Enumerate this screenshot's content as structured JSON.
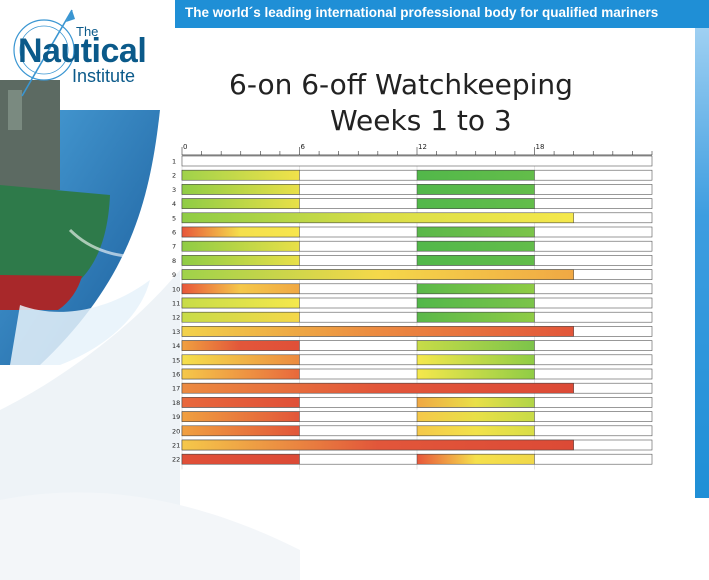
{
  "banner": {
    "text": "The world´s leading international professional body for qualified mariners"
  },
  "logo": {
    "the": "The",
    "name": "Nautical",
    "institute": "Institute"
  },
  "colors": {
    "banner": "#1f8fd6",
    "logo": "#0b5a8a"
  },
  "chart_data": {
    "type": "bar",
    "title_line1": "6-on 6-off Watchkeeping",
    "title_line2": "Weeks 1 to 3",
    "xlim": [
      0,
      24
    ],
    "x_ticks": [
      0,
      6,
      12,
      18
    ],
    "x_tick_labels": [
      "0",
      "6",
      "12",
      "18"
    ],
    "rows": [
      {
        "label": "1",
        "segments": []
      },
      {
        "label": "2",
        "segments": [
          {
            "start": 0,
            "end": 6,
            "c": [
              "#9fd24a",
              "#f2e24a"
            ]
          },
          {
            "start": 12,
            "end": 18,
            "c": [
              "#52b84a",
              "#63bd4a"
            ]
          }
        ]
      },
      {
        "label": "3",
        "segments": [
          {
            "start": 0,
            "end": 6,
            "c": [
              "#8fcc45",
              "#e9e048"
            ]
          },
          {
            "start": 12,
            "end": 18,
            "c": [
              "#52b84a",
              "#63bd4a"
            ]
          }
        ]
      },
      {
        "label": "4",
        "segments": [
          {
            "start": 0,
            "end": 6,
            "c": [
              "#8fcc45",
              "#e9e048"
            ]
          },
          {
            "start": 12,
            "end": 18,
            "c": [
              "#52b84a",
              "#63bd4a"
            ]
          }
        ]
      },
      {
        "label": "5",
        "segments": [
          {
            "start": 0,
            "end": 20,
            "c": [
              "#8fcc45",
              "#d9de48",
              "#f5e84c"
            ]
          }
        ]
      },
      {
        "label": "6",
        "segments": [
          {
            "start": 0,
            "end": 6,
            "c": [
              "#e8563a",
              "#f5e04c",
              "#f7e64d"
            ]
          },
          {
            "start": 12,
            "end": 18,
            "c": [
              "#5ab84a",
              "#7cc44a"
            ]
          }
        ]
      },
      {
        "label": "7",
        "segments": [
          {
            "start": 0,
            "end": 6,
            "c": [
              "#8fcc45",
              "#e9e048"
            ]
          },
          {
            "start": 12,
            "end": 18,
            "c": [
              "#52b84a",
              "#63bd4a"
            ]
          }
        ]
      },
      {
        "label": "8",
        "segments": [
          {
            "start": 0,
            "end": 6,
            "c": [
              "#8fcc45",
              "#e9e048"
            ]
          },
          {
            "start": 12,
            "end": 18,
            "c": [
              "#52b84a",
              "#63bd4a"
            ]
          }
        ]
      },
      {
        "label": "9",
        "segments": [
          {
            "start": 0,
            "end": 20,
            "c": [
              "#9fd24a",
              "#f5d84a",
              "#f0a844"
            ]
          }
        ]
      },
      {
        "label": "10",
        "segments": [
          {
            "start": 0,
            "end": 6,
            "c": [
              "#e8563a",
              "#f5c84a",
              "#f0a844"
            ]
          },
          {
            "start": 12,
            "end": 18,
            "c": [
              "#5ab84a",
              "#8fcc45"
            ]
          }
        ]
      },
      {
        "label": "11",
        "segments": [
          {
            "start": 0,
            "end": 6,
            "c": [
              "#c8dc48",
              "#f5e84c"
            ]
          },
          {
            "start": 12,
            "end": 18,
            "c": [
              "#52b84a",
              "#7cc44a"
            ]
          }
        ]
      },
      {
        "label": "12",
        "segments": [
          {
            "start": 0,
            "end": 6,
            "c": [
              "#c8dc48",
              "#f5d84a"
            ]
          },
          {
            "start": 12,
            "end": 18,
            "c": [
              "#5ab84a",
              "#8fcc45"
            ]
          }
        ]
      },
      {
        "label": "13",
        "segments": [
          {
            "start": 0,
            "end": 20,
            "c": [
              "#f2d24a",
              "#ec8a40",
              "#e2563a"
            ]
          }
        ]
      },
      {
        "label": "14",
        "segments": [
          {
            "start": 0,
            "end": 6,
            "c": [
              "#f0a040",
              "#e2563a",
              "#e05038"
            ]
          },
          {
            "start": 12,
            "end": 18,
            "c": [
              "#c8dc48",
              "#7cc44a"
            ]
          }
        ]
      },
      {
        "label": "15",
        "segments": [
          {
            "start": 0,
            "end": 6,
            "c": [
              "#f5e04c",
              "#ec8a40"
            ]
          },
          {
            "start": 12,
            "end": 18,
            "c": [
              "#f5e84c",
              "#8fcc45"
            ]
          }
        ]
      },
      {
        "label": "16",
        "segments": [
          {
            "start": 0,
            "end": 6,
            "c": [
              "#f5c84a",
              "#e8683c"
            ]
          },
          {
            "start": 12,
            "end": 18,
            "c": [
              "#f5e84c",
              "#8fcc45"
            ]
          }
        ]
      },
      {
        "label": "17",
        "segments": [
          {
            "start": 0,
            "end": 20,
            "c": [
              "#ec8a40",
              "#e2563a",
              "#dc4a36"
            ]
          }
        ]
      },
      {
        "label": "18",
        "segments": [
          {
            "start": 0,
            "end": 6,
            "c": [
              "#e8683c",
              "#e05038"
            ]
          },
          {
            "start": 12,
            "end": 18,
            "c": [
              "#f0a844",
              "#e9e048",
              "#b0d448"
            ]
          }
        ]
      },
      {
        "label": "19",
        "segments": [
          {
            "start": 0,
            "end": 6,
            "c": [
              "#f0a040",
              "#e2563a"
            ]
          },
          {
            "start": 12,
            "end": 18,
            "c": [
              "#f5c84a",
              "#e9e048",
              "#c8dc48"
            ]
          }
        ]
      },
      {
        "label": "20",
        "segments": [
          {
            "start": 0,
            "end": 6,
            "c": [
              "#f0a040",
              "#e2563a"
            ]
          },
          {
            "start": 12,
            "end": 18,
            "c": [
              "#f5c84a",
              "#f2e24a",
              "#d8de48"
            ]
          }
        ]
      },
      {
        "label": "21",
        "segments": [
          {
            "start": 0,
            "end": 20,
            "c": [
              "#f5c84a",
              "#e2563a",
              "#dc4a36"
            ]
          }
        ]
      },
      {
        "label": "22",
        "segments": [
          {
            "start": 0,
            "end": 6,
            "c": [
              "#e05038",
              "#dc4a36"
            ]
          },
          {
            "start": 12,
            "end": 18,
            "c": [
              "#e8563a",
              "#f5e04c",
              "#f0d84a"
            ]
          }
        ]
      }
    ]
  }
}
